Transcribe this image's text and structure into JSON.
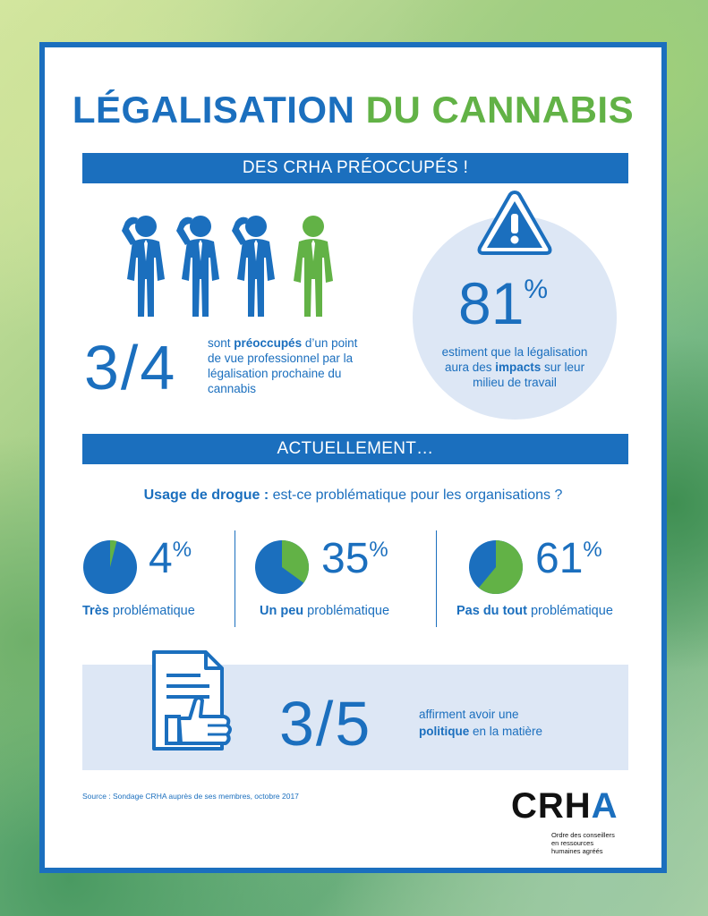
{
  "title": {
    "part1": "LÉGALISATION",
    "part2": "DU CANNABIS"
  },
  "banner1": "DES CRHA PRÉOCCUPÉS !",
  "stat1": {
    "value": "3/4",
    "desc_pre": "sont",
    "desc_bold": "préoccupés",
    "desc_post": "d’un point de vue professionnel par la légalisation prochaine du cannabis"
  },
  "stat2": {
    "value": "81",
    "unit": "%",
    "desc_pre": "estiment que la légalisation aura des",
    "desc_bold": "impacts",
    "desc_post": "sur leur milieu de travail"
  },
  "banner2": "ACTUELLEMENT…",
  "question": {
    "bold": "Usage de drogue :",
    "rest": "est-ce problématique pour les organisations ?"
  },
  "items": [
    {
      "value": "4",
      "unit": "%",
      "bold": "Très",
      "rest": "problématique",
      "fraction": 0.04
    },
    {
      "value": "35",
      "unit": "%",
      "bold": "Un peu",
      "rest": "problématique",
      "fraction": 0.35
    },
    {
      "value": "61",
      "unit": "%",
      "bold": "Pas du tout",
      "rest": "problématique",
      "fraction": 0.61
    }
  ],
  "stat3": {
    "value": "3/5",
    "desc_pre": "affirment avoir une",
    "desc_bold": "politique",
    "desc_post": "en la matière"
  },
  "source": "Source : Sondage CRHA auprès de ses membres, octobre 2017",
  "logo": {
    "text_main": "CRH",
    "text_accent": "A",
    "sub": [
      "Ordre des conseillers",
      "en ressources",
      "humaines agréés"
    ]
  },
  "colors": {
    "blue": "#1b6fbe",
    "green": "#62b246",
    "light_blue": "#dde7f5"
  },
  "icons": [
    "saluting-person-icon",
    "warning-icon",
    "document-thumbs-up-icon"
  ]
}
